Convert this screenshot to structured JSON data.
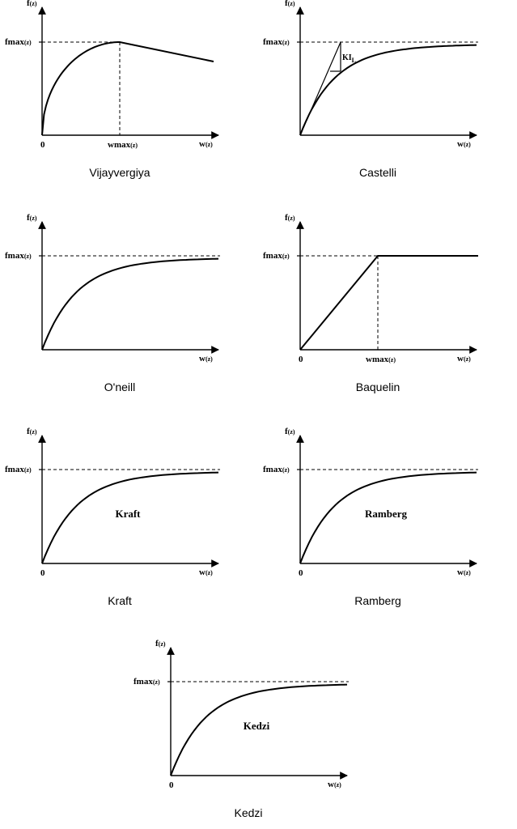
{
  "chart_data": [
    {
      "type": "line",
      "caption": "Vijayvergiya",
      "shape": "peak",
      "ylabel": "f(z)",
      "xlabel": "w(z)",
      "origin_label": "0",
      "ymax_label": "fmax(z)",
      "xmax_label": "wmax(z)",
      "inner_label": "",
      "slope_label": ""
    },
    {
      "type": "line",
      "caption": "Castelli",
      "shape": "tangent",
      "ylabel": "f(z)",
      "xlabel": "w(z)",
      "origin_label": "",
      "ymax_label": "fmax(z)",
      "xmax_label": "",
      "inner_label": "",
      "slope_label": "KIL"
    },
    {
      "type": "line",
      "caption": "O'neill",
      "shape": "hyperbolic",
      "ylabel": "f(z)",
      "xlabel": "w(z)",
      "origin_label": "",
      "ymax_label": "fmax(z)",
      "xmax_label": "",
      "inner_label": "",
      "slope_label": ""
    },
    {
      "type": "line",
      "caption": "Baquelin",
      "shape": "bilinear",
      "ylabel": "f(z)",
      "xlabel": "w(z)",
      "origin_label": "0",
      "ymax_label": "fmax(z)",
      "xmax_label": "wmax(z)",
      "inner_label": "",
      "slope_label": ""
    },
    {
      "type": "line",
      "caption": "Kraft",
      "shape": "hyperbolic",
      "ylabel": "f(z)",
      "xlabel": "w(z)",
      "origin_label": "0",
      "ymax_label": "fmax(z)",
      "xmax_label": "",
      "inner_label": "Kraft",
      "slope_label": ""
    },
    {
      "type": "line",
      "caption": "Ramberg",
      "shape": "hyperbolic",
      "ylabel": "f(z)",
      "xlabel": "w(z)",
      "origin_label": "0",
      "ymax_label": "fmax(z)",
      "xmax_label": "",
      "inner_label": "Ramberg",
      "slope_label": ""
    },
    {
      "type": "line",
      "caption": "Kedzi",
      "shape": "hyperbolic",
      "ylabel": "f(z)",
      "xlabel": "w(z)",
      "origin_label": "0",
      "ymax_label": "fmax(z)",
      "xmax_label": "",
      "inner_label": "Kedzi",
      "slope_label": ""
    }
  ]
}
